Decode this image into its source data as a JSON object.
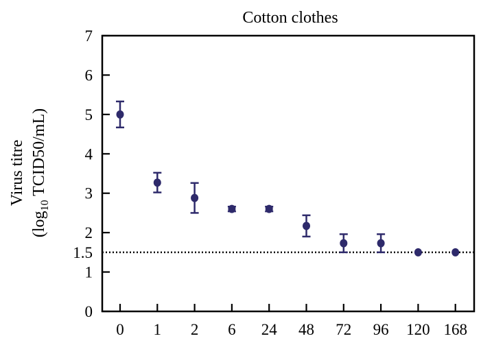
{
  "chart_data": {
    "type": "scatter",
    "title": "Cotton clothes",
    "ylabel_line1": "Virus titre",
    "ylabel_line2_prefix": "(log",
    "ylabel_line2_sub": "10",
    "ylabel_line2_suffix": " TCID50/mL)",
    "xlabel": "",
    "categories": [
      "0",
      "1",
      "2",
      "6",
      "24",
      "48",
      "72",
      "96",
      "120",
      "168"
    ],
    "values": [
      5.0,
      3.27,
      2.88,
      2.6,
      2.6,
      2.17,
      1.73,
      1.73,
      1.5,
      1.5
    ],
    "errors": [
      0.33,
      0.25,
      0.38,
      0.06,
      0.06,
      0.27,
      0.23,
      0.23,
      0.0,
      0.0
    ],
    "ylim": [
      0,
      7
    ],
    "yticks": [
      "0",
      "1",
      "2",
      "3",
      "4",
      "5",
      "6",
      "7"
    ],
    "reference_line": {
      "value": 1.5,
      "label": "1.5",
      "style": "dotted"
    },
    "grid": false,
    "colors": {
      "marker": "#2e2a6b",
      "axis": "#000000",
      "reference": "#000000"
    }
  }
}
